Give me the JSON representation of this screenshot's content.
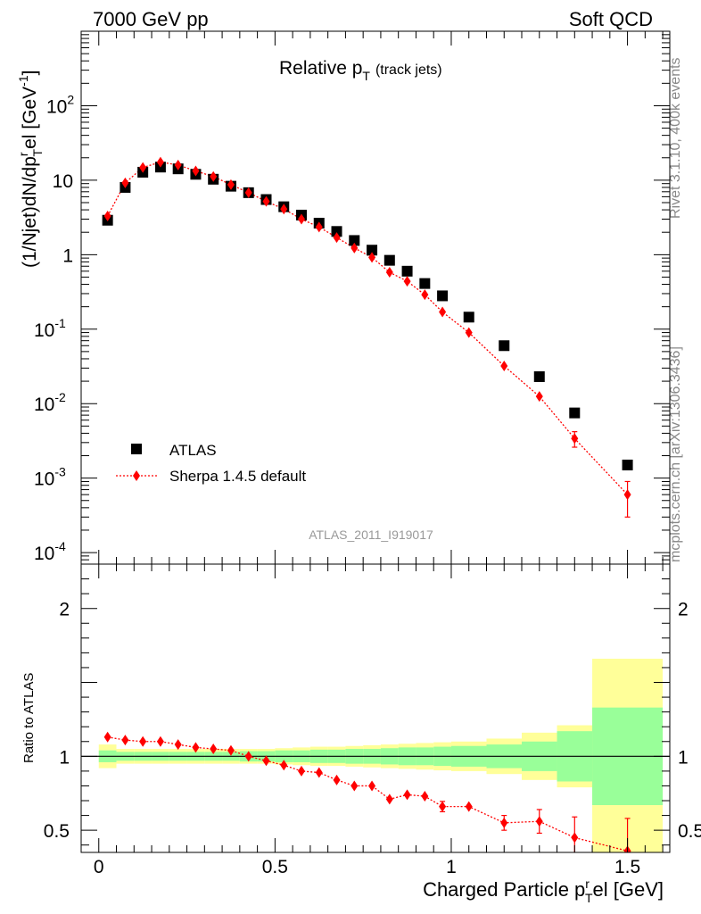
{
  "header": {
    "left": "7000 GeV pp",
    "right": "Soft QCD"
  },
  "side": {
    "rivet": "Rivet 3.1.10,  400k events",
    "mcplots": "mcplots.cern.ch [arXiv:1306.3436]"
  },
  "chart_data": {
    "type": "scatter",
    "title": "Relative p",
    "title_sub": "T",
    "title_suffix": "(track jets)",
    "analysis_tag": "ATLAS_2011_I919017",
    "ylabel": "(1/Njet)dN/dp",
    "ylabel_sub": "T",
    "ylabel_sup": "r",
    "ylabel_suffix": "el [GeV",
    "ylabel_unit_sup": "-1",
    "ylabel_close": "]",
    "xlabel": "Charged Particle p",
    "xlabel_sub": "T",
    "xlabel_sup": "r",
    "xlabel_suffix": "el [GeV]",
    "ratio_ylabel": "Ratio to ATLAS",
    "xlim": [
      -0.05,
      1.62
    ],
    "ylim_log": [
      7e-05,
      1000
    ],
    "ratio_ylim": [
      0.35,
      2.3
    ],
    "xticks": [
      0,
      0.5,
      1,
      1.5
    ],
    "xtick_labels": [
      "0",
      "0.5",
      "1",
      "1.5"
    ],
    "ytick_labels": [
      {
        "base": "10",
        "exp": "-4",
        "value": 0.0001
      },
      {
        "base": "10",
        "exp": "-3",
        "value": 0.001
      },
      {
        "base": "10",
        "exp": "-2",
        "value": 0.01
      },
      {
        "base": "10",
        "exp": "-1",
        "value": 0.1
      },
      {
        "base": "1",
        "exp": "",
        "value": 1
      },
      {
        "base": "10",
        "exp": "",
        "value": 10
      },
      {
        "base": "10",
        "exp": "2",
        "value": 100
      }
    ],
    "ratio_yticks": [
      0.5,
      1,
      2
    ],
    "ratio_ytick_labels": [
      "0.5",
      "1",
      "2"
    ],
    "legend": {
      "placement": "lower-left",
      "data_label": "ATLAS",
      "mc_label": "Sherpa 1.4.5 default"
    },
    "x": [
      0.025,
      0.075,
      0.125,
      0.175,
      0.225,
      0.275,
      0.325,
      0.375,
      0.425,
      0.475,
      0.525,
      0.575,
      0.625,
      0.675,
      0.725,
      0.775,
      0.825,
      0.875,
      0.925,
      0.975,
      1.05,
      1.15,
      1.25,
      1.35,
      1.5
    ],
    "bin_edges": [
      0,
      0.05,
      0.1,
      0.15,
      0.2,
      0.25,
      0.3,
      0.35,
      0.4,
      0.45,
      0.5,
      0.55,
      0.6,
      0.65,
      0.7,
      0.75,
      0.8,
      0.85,
      0.9,
      0.95,
      1.0,
      1.1,
      1.2,
      1.3,
      1.4,
      1.6
    ],
    "series": [
      {
        "name": "ATLAS",
        "color": "#000000",
        "values": [
          2.9,
          8.0,
          12.8,
          15.0,
          14.2,
          12.0,
          10.3,
          8.3,
          6.8,
          5.5,
          4.4,
          3.4,
          2.65,
          2.05,
          1.55,
          1.15,
          0.84,
          0.6,
          0.41,
          0.28,
          0.145,
          0.06,
          0.023,
          0.0075,
          0.0015
        ]
      },
      {
        "name": "Sherpa 1.4.5 default",
        "color": "#ff0000",
        "values": [
          3.3,
          9.2,
          14.8,
          17.5,
          16.0,
          13.3,
          11.2,
          8.7,
          6.8,
          5.2,
          4.1,
          3.0,
          2.35,
          1.7,
          1.23,
          0.92,
          0.58,
          0.44,
          0.29,
          0.17,
          0.09,
          0.032,
          0.0125,
          0.0034,
          0.0006
        ],
        "errors": [
          0.03,
          0.08,
          0.1,
          0.15,
          0.15,
          0.12,
          0.1,
          0.08,
          0.07,
          0.06,
          0.05,
          0.05,
          0.04,
          0.03,
          0.03,
          0.03,
          0.02,
          0.015,
          0.012,
          0.01,
          0.005,
          0.003,
          0.0015,
          0.0008,
          0.0003
        ]
      }
    ],
    "ratio": {
      "values": [
        1.13,
        1.11,
        1.1,
        1.1,
        1.08,
        1.06,
        1.05,
        1.04,
        1.0,
        0.97,
        0.94,
        0.9,
        0.89,
        0.84,
        0.8,
        0.8,
        0.71,
        0.74,
        0.73,
        0.66,
        0.66,
        0.55,
        0.56,
        0.45,
        0.36
      ],
      "errors": [
        0.01,
        0.01,
        0.01,
        0.01,
        0.01,
        0.01,
        0.01,
        0.01,
        0.01,
        0.01,
        0.01,
        0.01,
        0.015,
        0.015,
        0.02,
        0.02,
        0.02,
        0.025,
        0.03,
        0.035,
        0.03,
        0.05,
        0.08,
        0.14,
        0.22
      ],
      "band_inner": [
        0.04,
        0.03,
        0.03,
        0.03,
        0.03,
        0.03,
        0.03,
        0.03,
        0.035,
        0.035,
        0.04,
        0.04,
        0.045,
        0.045,
        0.05,
        0.05,
        0.055,
        0.06,
        0.06,
        0.065,
        0.07,
        0.08,
        0.1,
        0.17,
        0.33
      ],
      "band_outer": [
        0.08,
        0.05,
        0.05,
        0.05,
        0.05,
        0.05,
        0.05,
        0.05,
        0.05,
        0.05,
        0.055,
        0.06,
        0.065,
        0.065,
        0.07,
        0.075,
        0.08,
        0.085,
        0.09,
        0.095,
        0.1,
        0.12,
        0.16,
        0.21,
        0.66
      ],
      "colors": {
        "inner": "#99ff99",
        "outer": "#ffff99",
        "line": "#000000"
      }
    }
  }
}
